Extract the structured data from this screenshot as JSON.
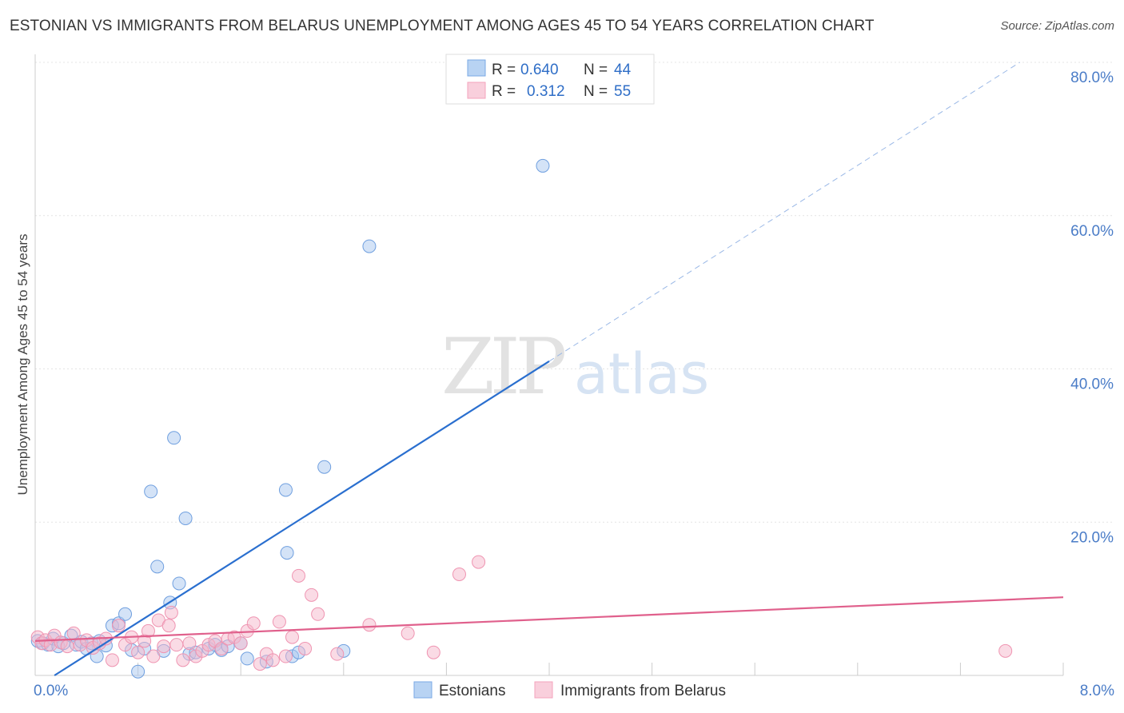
{
  "title": "ESTONIAN VS IMMIGRANTS FROM BELARUS UNEMPLOYMENT AMONG AGES 45 TO 54 YEARS CORRELATION CHART",
  "source": "Source: ZipAtlas.com",
  "watermark": {
    "zip": "ZIP",
    "atlas": "atlas"
  },
  "legend": {
    "r_label": "R =",
    "n_label": "N =",
    "items": [
      {
        "r": "0.640",
        "n": "44",
        "color": "#a9c8f0"
      },
      {
        "r": "0.312",
        "n": "55",
        "color": "#f6b8cb"
      }
    ]
  },
  "chart_data": {
    "type": "scatter",
    "title": "ESTONIAN VS IMMIGRANTS FROM BELARUS UNEMPLOYMENT AMONG AGES 45 TO 54 YEARS CORRELATION CHART",
    "xlabel": "",
    "ylabel": "Unemployment Among Ages 45 to 54 years",
    "xlim": [
      0,
      8
    ],
    "ylim": [
      0,
      80
    ],
    "x_tick_labels": [
      "0.0%",
      "8.0%"
    ],
    "y_ticks": [
      20,
      40,
      60,
      80
    ],
    "y_tick_labels": [
      "20.0%",
      "40.0%",
      "60.0%",
      "80.0%"
    ],
    "grid": true,
    "legend_position": "top-center",
    "series": [
      {
        "name": "Estonians",
        "color": "#7aa8e6",
        "line_color": "#2a6fcf",
        "trend": {
          "x0": 0.15,
          "y0": 0.0,
          "x1": 4.0,
          "y1": 41.0,
          "dash_to_x": 8.0
        },
        "points": [
          [
            0.02,
            4.5
          ],
          [
            0.06,
            4.2
          ],
          [
            0.1,
            4.0
          ],
          [
            0.14,
            4.8
          ],
          [
            0.18,
            3.8
          ],
          [
            0.22,
            4.2
          ],
          [
            0.28,
            5.2
          ],
          [
            0.32,
            4.0
          ],
          [
            0.36,
            4.4
          ],
          [
            0.4,
            3.5
          ],
          [
            0.44,
            4.2
          ],
          [
            0.48,
            2.5
          ],
          [
            0.5,
            4.5
          ],
          [
            0.55,
            3.9
          ],
          [
            0.6,
            6.5
          ],
          [
            0.65,
            6.8
          ],
          [
            0.7,
            8.0
          ],
          [
            0.75,
            3.3
          ],
          [
            0.8,
            0.5
          ],
          [
            0.85,
            3.5
          ],
          [
            0.9,
            24.0
          ],
          [
            0.95,
            14.2
          ],
          [
            1.0,
            3.2
          ],
          [
            1.05,
            9.5
          ],
          [
            1.08,
            31.0
          ],
          [
            1.12,
            12.0
          ],
          [
            1.17,
            20.5
          ],
          [
            1.2,
            2.8
          ],
          [
            1.25,
            3.0
          ],
          [
            1.35,
            3.5
          ],
          [
            1.4,
            4.0
          ],
          [
            1.45,
            3.3
          ],
          [
            1.5,
            3.8
          ],
          [
            1.6,
            4.2
          ],
          [
            1.65,
            2.2
          ],
          [
            1.8,
            1.8
          ],
          [
            1.95,
            24.2
          ],
          [
            1.96,
            16.0
          ],
          [
            2.0,
            2.5
          ],
          [
            2.05,
            3.0
          ],
          [
            2.25,
            27.2
          ],
          [
            2.4,
            3.2
          ],
          [
            2.6,
            56.0
          ],
          [
            3.95,
            66.5
          ]
        ]
      },
      {
        "name": "Immigrants from Belarus",
        "color": "#f4a3bc",
        "line_color": "#e0608c",
        "trend": {
          "x0": 0.0,
          "y0": 4.5,
          "x1": 8.0,
          "y1": 10.2
        },
        "points": [
          [
            0.02,
            5.0
          ],
          [
            0.05,
            4.2
          ],
          [
            0.08,
            4.6
          ],
          [
            0.12,
            4.0
          ],
          [
            0.15,
            5.2
          ],
          [
            0.2,
            4.3
          ],
          [
            0.25,
            3.8
          ],
          [
            0.3,
            5.5
          ],
          [
            0.35,
            4.0
          ],
          [
            0.4,
            4.6
          ],
          [
            0.45,
            3.6
          ],
          [
            0.5,
            4.2
          ],
          [
            0.55,
            4.8
          ],
          [
            0.6,
            2.0
          ],
          [
            0.65,
            6.5
          ],
          [
            0.7,
            4.0
          ],
          [
            0.75,
            5.0
          ],
          [
            0.8,
            3.0
          ],
          [
            0.85,
            4.5
          ],
          [
            0.88,
            5.8
          ],
          [
            0.92,
            2.5
          ],
          [
            0.96,
            7.2
          ],
          [
            1.0,
            3.8
          ],
          [
            1.04,
            6.5
          ],
          [
            1.06,
            8.2
          ],
          [
            1.1,
            4.0
          ],
          [
            1.15,
            2.0
          ],
          [
            1.2,
            4.2
          ],
          [
            1.25,
            2.5
          ],
          [
            1.3,
            3.2
          ],
          [
            1.35,
            4.0
          ],
          [
            1.4,
            4.5
          ],
          [
            1.45,
            3.5
          ],
          [
            1.5,
            4.8
          ],
          [
            1.55,
            5.0
          ],
          [
            1.6,
            4.2
          ],
          [
            1.65,
            5.8
          ],
          [
            1.7,
            6.8
          ],
          [
            1.75,
            1.5
          ],
          [
            1.8,
            2.8
          ],
          [
            1.85,
            2.0
          ],
          [
            1.9,
            7.0
          ],
          [
            1.95,
            2.5
          ],
          [
            2.0,
            5.0
          ],
          [
            2.05,
            13.0
          ],
          [
            2.1,
            3.5
          ],
          [
            2.15,
            10.5
          ],
          [
            2.2,
            8.0
          ],
          [
            2.35,
            2.8
          ],
          [
            2.6,
            6.6
          ],
          [
            2.9,
            5.5
          ],
          [
            3.1,
            3.0
          ],
          [
            3.3,
            13.2
          ],
          [
            3.45,
            14.8
          ],
          [
            7.55,
            3.2
          ]
        ]
      }
    ]
  }
}
